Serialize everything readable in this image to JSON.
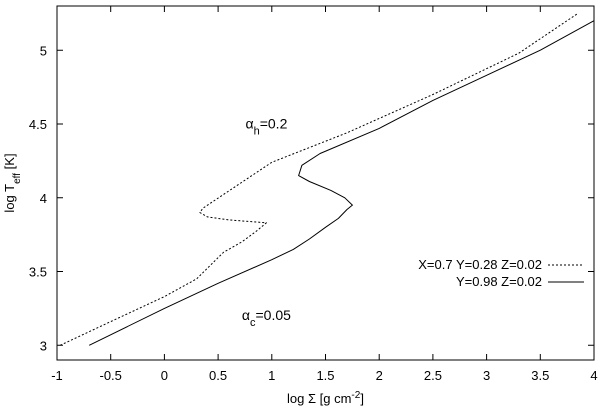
{
  "chart_data": {
    "type": "line",
    "xlabel": {
      "prefix": "log Σ [g cm",
      "sup": "-2",
      "suffix": "]"
    },
    "ylabel": {
      "prefix": "log T",
      "sub": "eff",
      "suffix": " [K]"
    },
    "xlim": [
      -1,
      4
    ],
    "ylim": [
      2.9,
      5.3
    ],
    "x_ticks": [
      -1,
      -0.5,
      0,
      0.5,
      1,
      1.5,
      2,
      2.5,
      3,
      3.5,
      4
    ],
    "x_tick_labels": [
      "-1",
      "-0.5",
      "0",
      "0.5",
      "1",
      "1.5",
      "2",
      "2.5",
      "3",
      "3.5",
      "4"
    ],
    "y_ticks": [
      3,
      3.5,
      4,
      4.5,
      5
    ],
    "y_tick_labels": [
      "3",
      "3.5",
      "4",
      "4.5",
      "5"
    ],
    "grid": false,
    "legend_position": "right",
    "annotations": [
      {
        "base": "α",
        "sub": "h",
        "suffix": "=0.2",
        "x": 0.95,
        "y": 4.47
      },
      {
        "base": "α",
        "sub": "c",
        "suffix": "=0.05",
        "x": 0.95,
        "y": 3.17
      }
    ],
    "series": [
      {
        "name": "X=0.7 Y=0.28 Z=0.02",
        "style": "dotted",
        "color": "#000000",
        "x": [
          -0.97,
          -0.5,
          0.0,
          0.3,
          0.55,
          0.72,
          0.85,
          0.95,
          0.6,
          0.4,
          0.33,
          0.36,
          1.0,
          1.7,
          2.5,
          3.3,
          3.85
        ],
        "y": [
          3.0,
          3.16,
          3.33,
          3.45,
          3.63,
          3.7,
          3.77,
          3.83,
          3.85,
          3.87,
          3.9,
          3.93,
          4.24,
          4.44,
          4.7,
          4.98,
          5.25
        ]
      },
      {
        "name": "Y=0.98 Z=0.02",
        "style": "solid",
        "color": "#000000",
        "x": [
          -0.7,
          0.0,
          0.5,
          1.0,
          1.2,
          1.35,
          1.5,
          1.62,
          1.7,
          1.75,
          1.68,
          1.55,
          1.35,
          1.25,
          1.28,
          1.45,
          2.0,
          2.5,
          3.0,
          3.5,
          4.0
        ],
        "y": [
          3.0,
          3.25,
          3.42,
          3.58,
          3.65,
          3.72,
          3.8,
          3.86,
          3.92,
          3.95,
          4.0,
          4.05,
          4.11,
          4.15,
          4.22,
          4.3,
          4.47,
          4.66,
          4.83,
          5.0,
          5.2
        ]
      }
    ]
  }
}
